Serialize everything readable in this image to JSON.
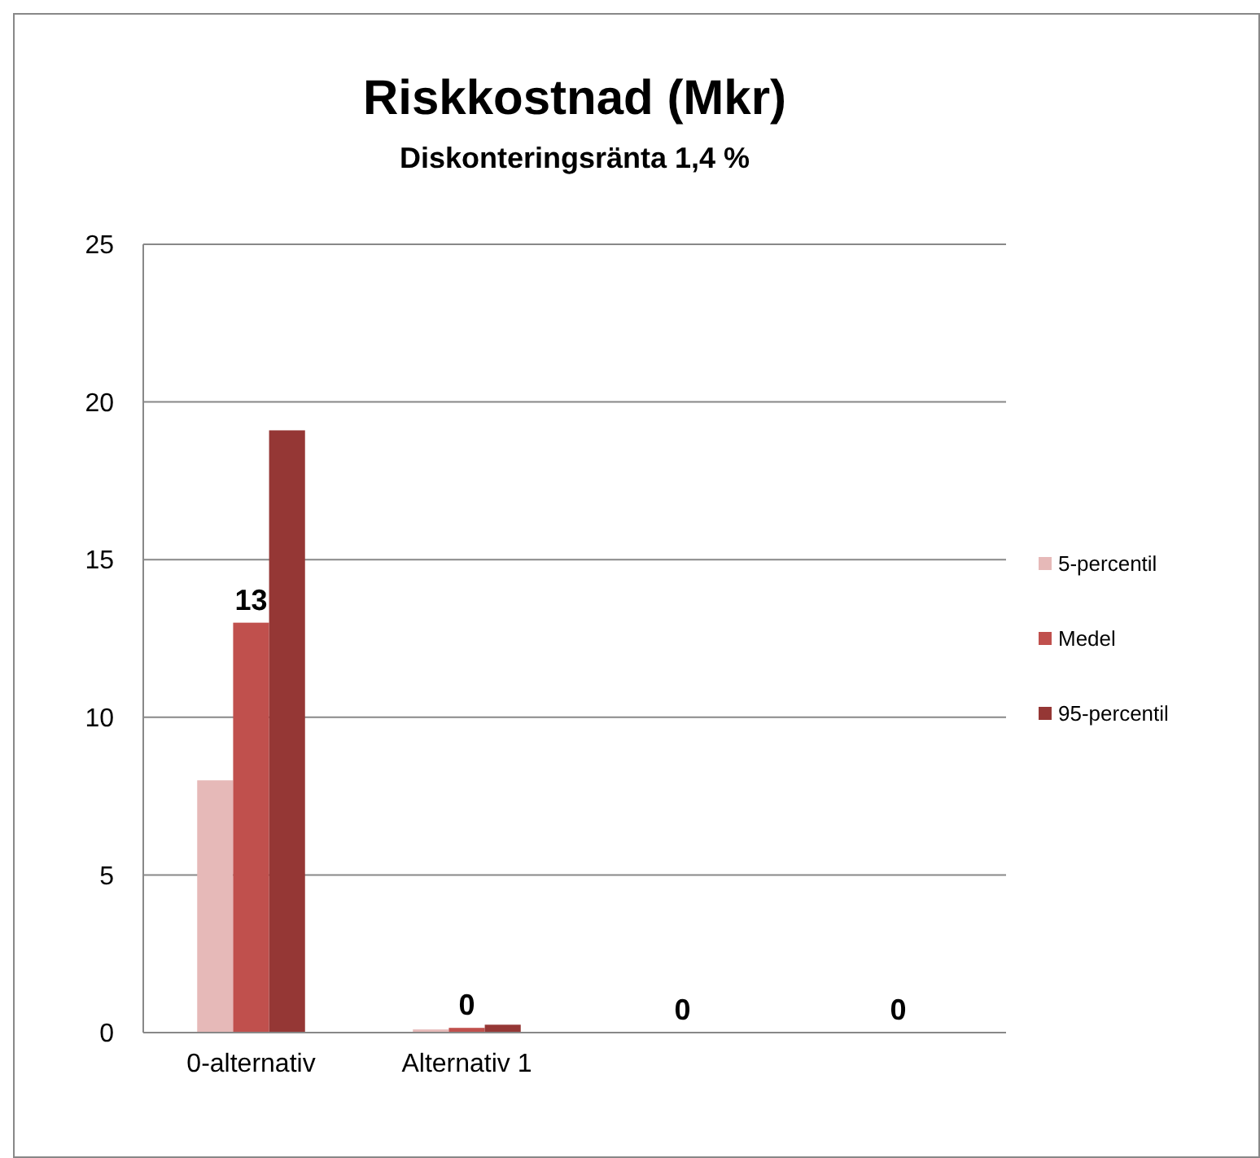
{
  "chart_data": {
    "type": "bar",
    "title": "Riskkostnad (Mkr)",
    "subtitle": "Diskonteringsränta 1,4 %",
    "categories": [
      "0-alternativ",
      "Alternativ 1",
      null,
      null
    ],
    "series": [
      {
        "name": "5-percentil",
        "color": "#e6b9b8",
        "values": [
          8,
          0.1,
          0,
          0
        ]
      },
      {
        "name": "Medel",
        "color": "#c0504d",
        "values": [
          13,
          0.15,
          0,
          0
        ],
        "value_labels": [
          "13",
          "0",
          "0",
          "0"
        ]
      },
      {
        "name": "95-percentil",
        "color": "#953735",
        "values": [
          19.1,
          0.25,
          0,
          0
        ]
      }
    ],
    "ylim": [
      0,
      25
    ],
    "yticks": [
      0,
      5,
      10,
      15,
      20,
      25
    ],
    "grid": "y",
    "legend": "right"
  }
}
